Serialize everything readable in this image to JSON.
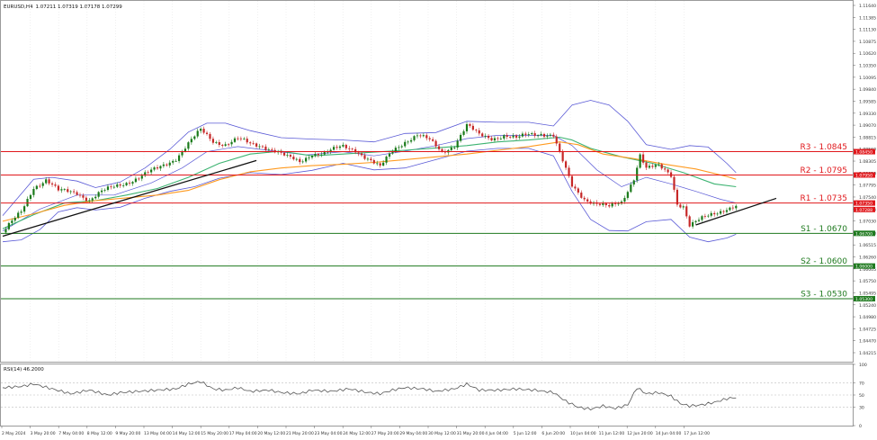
{
  "header": {
    "symbol": "EURUSD,H4",
    "ohlc": "1.07211 1.07319 1.07178 1.07299"
  },
  "colors": {
    "candle_up": "#1a7a1a",
    "candle_down": "#c62828",
    "resistance": "#e0181c",
    "support": "#1f7a1f",
    "bollinger": "#5a5ad6",
    "ma_fast": "#3cb371",
    "ma_slow": "#ff9a1f",
    "trendline": "#111111",
    "rsi_line": "#555555"
  },
  "chart_data": [
    {
      "type": "candlestick",
      "title": "EURUSD,H4",
      "ylim": [
        1.0395,
        1.1168
      ],
      "y_ticks": [
        "1.11640",
        "1.11385",
        "1.11130",
        "1.10875",
        "1.10620",
        "1.10350",
        "1.10095",
        "1.09840",
        "1.09585",
        "1.09330",
        "1.09070",
        "1.08815",
        "1.08560",
        "1.08305",
        "1.08050",
        "1.07795",
        "1.07540",
        "1.07285",
        "1.07030",
        "1.06770",
        "1.06515",
        "1.06260",
        "1.06005",
        "1.05750",
        "1.05495",
        "1.05240",
        "1.04980",
        "1.04725",
        "1.04470",
        "1.04215"
      ],
      "x_labels": [
        "2 May 2024",
        "3 May 20:00",
        "7 May 04:00",
        "8 May 12:00",
        "9 May 20:00",
        "13 May 04:00",
        "14 May 12:00",
        "15 May 20:00",
        "17 May 04:00",
        "20 May 12:00",
        "21 May 20:00",
        "23 May 04:00",
        "24 May 12:00",
        "27 May 20:00",
        "29 May 04:00",
        "30 May 12:00",
        "31 May 20:00",
        "4 Jun 04:00",
        "5 Jun 12:00",
        "6 Jun 20:00",
        "10 Jun 04:00",
        "11 Jun 12:00",
        "12 Jun 20:00",
        "14 Jun 04:00",
        "17 Jun 12:00"
      ],
      "current_price_label": "1.07288",
      "levels": [
        {
          "name": "R3",
          "label": "R3 - 1.0845",
          "value": 1.0845,
          "tag": "1.08450",
          "kind": "resistance"
        },
        {
          "name": "R2",
          "label": "R2 - 1.0795",
          "value": 1.0795,
          "tag": "1.07950",
          "kind": "resistance"
        },
        {
          "name": "R1",
          "label": "R1 - 1.0735",
          "value": 1.0735,
          "tag": "1.07350",
          "kind": "resistance"
        },
        {
          "name": "S1",
          "label": "S1 - 1.0670",
          "value": 1.067,
          "tag": "1.06700",
          "kind": "support"
        },
        {
          "name": "S2",
          "label": "S2 - 1.0600",
          "value": 1.06,
          "tag": "1.06000",
          "kind": "support"
        },
        {
          "name": "S3",
          "label": "S3 - 1.0530",
          "value": 1.053,
          "tag": "1.05300",
          "kind": "support"
        }
      ],
      "close_keypoints": [
        [
          0,
          1.0672
        ],
        [
          6,
          1.0715
        ],
        [
          10,
          1.077
        ],
        [
          14,
          1.0785
        ],
        [
          18,
          1.076
        ],
        [
          24,
          1.0758
        ],
        [
          28,
          1.0742
        ],
        [
          32,
          1.0758
        ],
        [
          38,
          1.0775
        ],
        [
          44,
          1.079
        ],
        [
          50,
          1.0808
        ],
        [
          56,
          1.0832
        ],
        [
          60,
          1.0862
        ],
        [
          64,
          1.089
        ],
        [
          68,
          1.0868
        ],
        [
          72,
          1.0862
        ],
        [
          76,
          1.0872
        ],
        [
          80,
          1.086
        ],
        [
          84,
          1.0858
        ],
        [
          88,
          1.0848
        ],
        [
          92,
          1.0832
        ],
        [
          96,
          1.0822
        ],
        [
          100,
          1.0842
        ],
        [
          104,
          1.0842
        ],
        [
          110,
          1.0855
        ],
        [
          114,
          1.085
        ],
        [
          118,
          1.083
        ],
        [
          122,
          1.081
        ],
        [
          126,
          1.0848
        ],
        [
          130,
          1.0868
        ],
        [
          134,
          1.088
        ],
        [
          138,
          1.0868
        ],
        [
          142,
          1.0845
        ],
        [
          146,
          1.086
        ],
        [
          150,
          1.09
        ],
        [
          154,
          1.088
        ],
        [
          158,
          1.0875
        ],
        [
          162,
          1.088
        ],
        [
          166,
          1.0872
        ],
        [
          170,
          1.0882
        ],
        [
          174,
          1.0885
        ],
        [
          178,
          1.088
        ],
        [
          180,
          1.084
        ],
        [
          184,
          1.077
        ],
        [
          188,
          1.0745
        ],
        [
          192,
          1.0735
        ],
        [
          196,
          1.0725
        ],
        [
          200,
          1.0735
        ],
        [
          204,
          1.079
        ],
        [
          206,
          1.084
        ],
        [
          208,
          1.081
        ],
        [
          212,
          1.0812
        ],
        [
          216,
          1.0795
        ],
        [
          218,
          1.0735
        ],
        [
          220,
          1.073
        ],
        [
          222,
          1.0688
        ],
        [
          226,
          1.07
        ],
        [
          230,
          1.0712
        ],
        [
          234,
          1.0725
        ],
        [
          237,
          1.073
        ]
      ],
      "indicators": {
        "bollinger": {
          "upper": [
            [
              0,
              1.0708
            ],
            [
              10,
              1.0786
            ],
            [
              16,
              1.079
            ],
            [
              24,
              1.0782
            ],
            [
              30,
              1.0768
            ],
            [
              38,
              1.078
            ],
            [
              46,
              1.081
            ],
            [
              54,
              1.085
            ],
            [
              60,
              1.0887
            ],
            [
              66,
              1.0906
            ],
            [
              72,
              1.0906
            ],
            [
              80,
              1.089
            ],
            [
              90,
              1.0875
            ],
            [
              100,
              1.0872
            ],
            [
              110,
              1.087
            ],
            [
              120,
              1.0866
            ],
            [
              130,
              1.0884
            ],
            [
              140,
              1.0886
            ],
            [
              150,
              1.091
            ],
            [
              160,
              1.0908
            ],
            [
              170,
              1.0908
            ],
            [
              178,
              1.09
            ],
            [
              184,
              1.0945
            ],
            [
              190,
              1.0955
            ],
            [
              196,
              1.0945
            ],
            [
              202,
              1.091
            ],
            [
              208,
              1.086
            ],
            [
              216,
              1.085
            ],
            [
              222,
              1.0858
            ],
            [
              228,
              1.0855
            ],
            [
              234,
              1.082
            ],
            [
              237,
              1.08
            ]
          ],
          "lower": [
            [
              0,
              1.0652
            ],
            [
              6,
              1.0656
            ],
            [
              12,
              1.0678
            ],
            [
              18,
              1.0716
            ],
            [
              24,
              1.0725
            ],
            [
              30,
              1.072
            ],
            [
              38,
              1.0726
            ],
            [
              46,
              1.0745
            ],
            [
              54,
              1.076
            ],
            [
              62,
              1.077
            ],
            [
              70,
              1.0788
            ],
            [
              80,
              1.08
            ],
            [
              90,
              1.0796
            ],
            [
              100,
              1.0805
            ],
            [
              110,
              1.082
            ],
            [
              120,
              1.0806
            ],
            [
              130,
              1.081
            ],
            [
              140,
              1.0828
            ],
            [
              150,
              1.0846
            ],
            [
              160,
              1.0852
            ],
            [
              170,
              1.0852
            ],
            [
              178,
              1.0836
            ],
            [
              184,
              1.076
            ],
            [
              190,
              1.07
            ],
            [
              196,
              1.0676
            ],
            [
              202,
              1.0675
            ],
            [
              208,
              1.0695
            ],
            [
              216,
              1.07
            ],
            [
              222,
              1.0662
            ],
            [
              228,
              1.0652
            ],
            [
              234,
              1.066
            ],
            [
              237,
              1.0668
            ]
          ],
          "middle": [
            [
              0,
              1.0675
            ],
            [
              12,
              1.0722
            ],
            [
              24,
              1.0752
            ],
            [
              36,
              1.0752
            ],
            [
              48,
              1.0778
            ],
            [
              58,
              1.081
            ],
            [
              66,
              1.0845
            ],
            [
              76,
              1.0856
            ],
            [
              88,
              1.0846
            ],
            [
              98,
              1.0838
            ],
            [
              110,
              1.0845
            ],
            [
              120,
              1.0836
            ],
            [
              130,
              1.0846
            ],
            [
              140,
              1.0858
            ],
            [
              150,
              1.0873
            ],
            [
              160,
              1.088
            ],
            [
              170,
              1.088
            ],
            [
              178,
              1.088
            ],
            [
              184,
              1.0858
            ],
            [
              192,
              1.0806
            ],
            [
              200,
              1.077
            ],
            [
              208,
              1.079
            ],
            [
              216,
              1.0776
            ],
            [
              224,
              1.076
            ],
            [
              232,
              1.0743
            ],
            [
              237,
              1.0735
            ]
          ]
        },
        "ma_fast": [
          [
            0,
            1.068
          ],
          [
            10,
            1.071
          ],
          [
            20,
            1.0735
          ],
          [
            30,
            1.074
          ],
          [
            40,
            1.0752
          ],
          [
            50,
            1.0766
          ],
          [
            60,
            1.079
          ],
          [
            70,
            1.082
          ],
          [
            80,
            1.084
          ],
          [
            90,
            1.0846
          ],
          [
            100,
            1.0836
          ],
          [
            110,
            1.084
          ],
          [
            120,
            1.0844
          ],
          [
            130,
            1.0848
          ],
          [
            140,
            1.0853
          ],
          [
            150,
            1.0858
          ],
          [
            160,
            1.0866
          ],
          [
            170,
            1.087
          ],
          [
            180,
            1.0876
          ],
          [
            184,
            1.087
          ],
          [
            190,
            1.0852
          ],
          [
            200,
            1.0834
          ],
          [
            210,
            1.082
          ],
          [
            220,
            1.08
          ],
          [
            230,
            1.0776
          ],
          [
            237,
            1.077
          ]
        ],
        "ma_slow": [
          [
            0,
            1.0696
          ],
          [
            10,
            1.0712
          ],
          [
            20,
            1.073
          ],
          [
            30,
            1.074
          ],
          [
            40,
            1.0746
          ],
          [
            50,
            1.0752
          ],
          [
            60,
            1.0762
          ],
          [
            70,
            1.0785
          ],
          [
            80,
            1.0802
          ],
          [
            90,
            1.081
          ],
          [
            100,
            1.0815
          ],
          [
            110,
            1.0818
          ],
          [
            120,
            1.0822
          ],
          [
            130,
            1.0828
          ],
          [
            140,
            1.0834
          ],
          [
            150,
            1.084
          ],
          [
            160,
            1.0848
          ],
          [
            170,
            1.0856
          ],
          [
            180,
            1.0866
          ],
          [
            186,
            1.086
          ],
          [
            194,
            1.084
          ],
          [
            204,
            1.083
          ],
          [
            214,
            1.0818
          ],
          [
            224,
            1.0808
          ],
          [
            234,
            1.0792
          ],
          [
            237,
            1.0786
          ]
        ],
        "trendlines": [
          {
            "from": [
              0,
              1.0664
            ],
            "to": [
              82,
              1.0826
            ]
          },
          {
            "from": [
              224,
              1.0688
            ],
            "to": [
              250,
              1.0745
            ]
          }
        ]
      }
    },
    {
      "type": "line",
      "title": "RSI(14) 46.2000",
      "ylim": [
        0,
        100
      ],
      "y_ticks": [
        "100",
        "70",
        "50",
        "30",
        "0"
      ],
      "levels": [
        70,
        50,
        30
      ],
      "values": [
        [
          0,
          62
        ],
        [
          6,
          64
        ],
        [
          10,
          68
        ],
        [
          16,
          60
        ],
        [
          22,
          52
        ],
        [
          28,
          58
        ],
        [
          34,
          50
        ],
        [
          38,
          54
        ],
        [
          44,
          56
        ],
        [
          50,
          58
        ],
        [
          56,
          60
        ],
        [
          60,
          68
        ],
        [
          64,
          72
        ],
        [
          68,
          60
        ],
        [
          72,
          58
        ],
        [
          76,
          62
        ],
        [
          80,
          56
        ],
        [
          86,
          58
        ],
        [
          90,
          54
        ],
        [
          96,
          52
        ],
        [
          100,
          58
        ],
        [
          106,
          56
        ],
        [
          112,
          60
        ],
        [
          118,
          54
        ],
        [
          122,
          52
        ],
        [
          126,
          58
        ],
        [
          130,
          62
        ],
        [
          136,
          60
        ],
        [
          140,
          56
        ],
        [
          146,
          60
        ],
        [
          150,
          68
        ],
        [
          154,
          58
        ],
        [
          160,
          58
        ],
        [
          166,
          60
        ],
        [
          172,
          58
        ],
        [
          178,
          54
        ],
        [
          182,
          40
        ],
        [
          186,
          30
        ],
        [
          190,
          27
        ],
        [
          194,
          32
        ],
        [
          198,
          28
        ],
        [
          202,
          34
        ],
        [
          205,
          62
        ],
        [
          208,
          52
        ],
        [
          212,
          54
        ],
        [
          216,
          48
        ],
        [
          219,
          36
        ],
        [
          222,
          32
        ],
        [
          226,
          34
        ],
        [
          230,
          38
        ],
        [
          234,
          44
        ],
        [
          237,
          46
        ]
      ]
    }
  ]
}
